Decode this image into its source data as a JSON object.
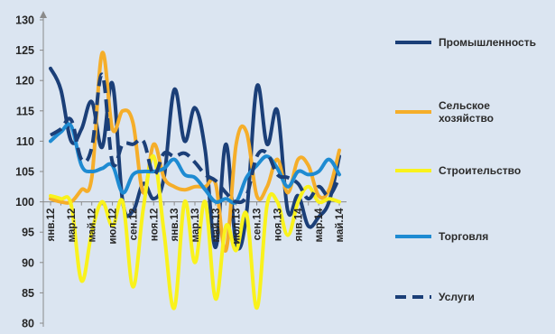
{
  "chart_data": {
    "type": "line",
    "title": "",
    "xlabel": "",
    "ylabel": "",
    "ylim": [
      80,
      130
    ],
    "yticks": [
      "80",
      "85",
      "90",
      "95",
      "100",
      "105",
      "110",
      "115",
      "120",
      "125",
      "130"
    ],
    "x": [
      "янв.12",
      "фев.12",
      "мар.12",
      "апр.12",
      "май.12",
      "июн.12",
      "июл.12",
      "авг.12",
      "сен.12",
      "окт.12",
      "ноя.12",
      "дек.12",
      "янв.13",
      "фев.13",
      "мар.13",
      "апр.13",
      "май.13",
      "июн.13",
      "июл.13",
      "авг.13",
      "сен.13",
      "окт.13",
      "ноя.13",
      "дек.13",
      "янв.14",
      "фев.14",
      "мар.14",
      "апр.14",
      "май.14"
    ],
    "xtick_labels": [
      "янв.12",
      "мар.12",
      "май.12",
      "июл.12",
      "сен.12",
      "ноя.12",
      "янв.13",
      "мар.13",
      "май.13",
      "июл.13",
      "сен.13",
      "ноя.13",
      "янв.14",
      "мар.14",
      "май.14"
    ],
    "baseline": 100,
    "legend_position": "right",
    "grid": false,
    "series": [
      {
        "name": "Промышленность",
        "color": "#1b3f78",
        "dash": false,
        "values": [
          122,
          118.5,
          110,
          112,
          116.5,
          109,
          119.5,
          100,
          98.5,
          103,
          100.5,
          104,
          118.5,
          110,
          115.5,
          108.5,
          92.5,
          109.5,
          93,
          98,
          119,
          109.5,
          115,
          98.5,
          101,
          96,
          97.5,
          100,
          107.5
        ]
      },
      {
        "name": "Сельское хозяйство",
        "color": "#f5ae2a",
        "dash": false,
        "values": [
          100.5,
          100,
          100,
          102,
          104,
          124.5,
          112,
          115,
          113,
          101.5,
          109.5,
          104,
          102.5,
          102,
          102.5,
          102.5,
          103,
          92,
          109.5,
          111.5,
          101,
          102.5,
          107,
          101.5,
          107,
          106,
          101,
          102,
          108.5
        ]
      },
      {
        "name": "Строительство",
        "color": "#f9f21c",
        "dash": false,
        "values": [
          101,
          100.5,
          99.5,
          87,
          95,
          100,
          96,
          100,
          86,
          99,
          107.5,
          95,
          82.5,
          100,
          90,
          100,
          84,
          96,
          92,
          98,
          82.5,
          99.5,
          100,
          94.5,
          100,
          102.5,
          100,
          100.5,
          100
        ]
      },
      {
        "name": "Торговля",
        "color": "#1e8bd2",
        "dash": false,
        "values": [
          110,
          111.5,
          112.5,
          106,
          105,
          105.5,
          106,
          101.5,
          104.5,
          105,
          105,
          105.5,
          107,
          104.5,
          104,
          102,
          100,
          100.5,
          100,
          104,
          106,
          107.5,
          105.5,
          102.5,
          105,
          104.5,
          105,
          107,
          104.5
        ]
      },
      {
        "name": "Услуги",
        "color": "#1b3f78",
        "dash": true,
        "values": [
          111,
          112,
          113.5,
          107,
          109,
          121,
          106.5,
          109.5,
          109.5,
          110,
          104.5,
          108,
          107.5,
          108,
          106.5,
          104.5,
          103.5,
          101.5,
          100,
          101,
          107.5,
          108,
          104.5,
          104,
          103,
          100.5,
          102.5,
          101,
          104
        ]
      }
    ]
  }
}
